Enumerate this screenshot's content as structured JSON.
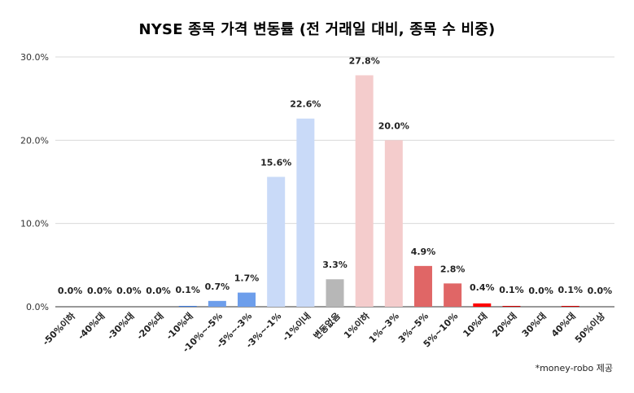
{
  "chart_data": {
    "type": "bar",
    "title": "NYSE 종목 가격 변동률 (전 거래일 대비, 종목 수 비중)",
    "xlabel": "",
    "ylabel": "",
    "ylim": [
      0,
      30
    ],
    "yticks": [
      "0.0%",
      "10.0%",
      "20.0%",
      "30.0%"
    ],
    "grid": true,
    "categories": [
      "-50%이하",
      "-40%대",
      "-30%대",
      "-20%대",
      "-10%대",
      "-10%~-5%",
      "-5%~-3%",
      "-3%~-1%",
      "-1%이내",
      "변동없음",
      "1%이하",
      "1%~3%",
      "3%~5%",
      "5%~10%",
      "10%대",
      "20%대",
      "30%대",
      "40%대",
      "50%이상"
    ],
    "values": [
      0.0,
      0.0,
      0.0,
      0.0,
      0.1,
      0.7,
      1.7,
      15.6,
      22.6,
      3.3,
      27.8,
      20.0,
      4.9,
      2.8,
      0.4,
      0.1,
      0.0,
      0.1,
      0.0
    ],
    "value_labels": [
      "0.0%",
      "0.0%",
      "0.0%",
      "0.0%",
      "0.1%",
      "0.7%",
      "1.7%",
      "15.6%",
      "22.6%",
      "3.3%",
      "27.8%",
      "20.0%",
      "4.9%",
      "2.8%",
      "0.4%",
      "0.1%",
      "0.0%",
      "0.1%",
      "0.0%"
    ],
    "colors": [
      "#3c78d8",
      "#3c78d8",
      "#3c78d8",
      "#3c78d8",
      "#3c78d8",
      "#6d9eeb",
      "#6d9eeb",
      "#c9daf8",
      "#c9daf8",
      "#b7b7b7",
      "#f4cccc",
      "#f4cccc",
      "#e06666",
      "#e06666",
      "#ff0000",
      "#cc0000",
      "#cc0000",
      "#cc0000",
      "#cc0000"
    ]
  },
  "footer": {
    "source": "*money-robo 제공"
  }
}
